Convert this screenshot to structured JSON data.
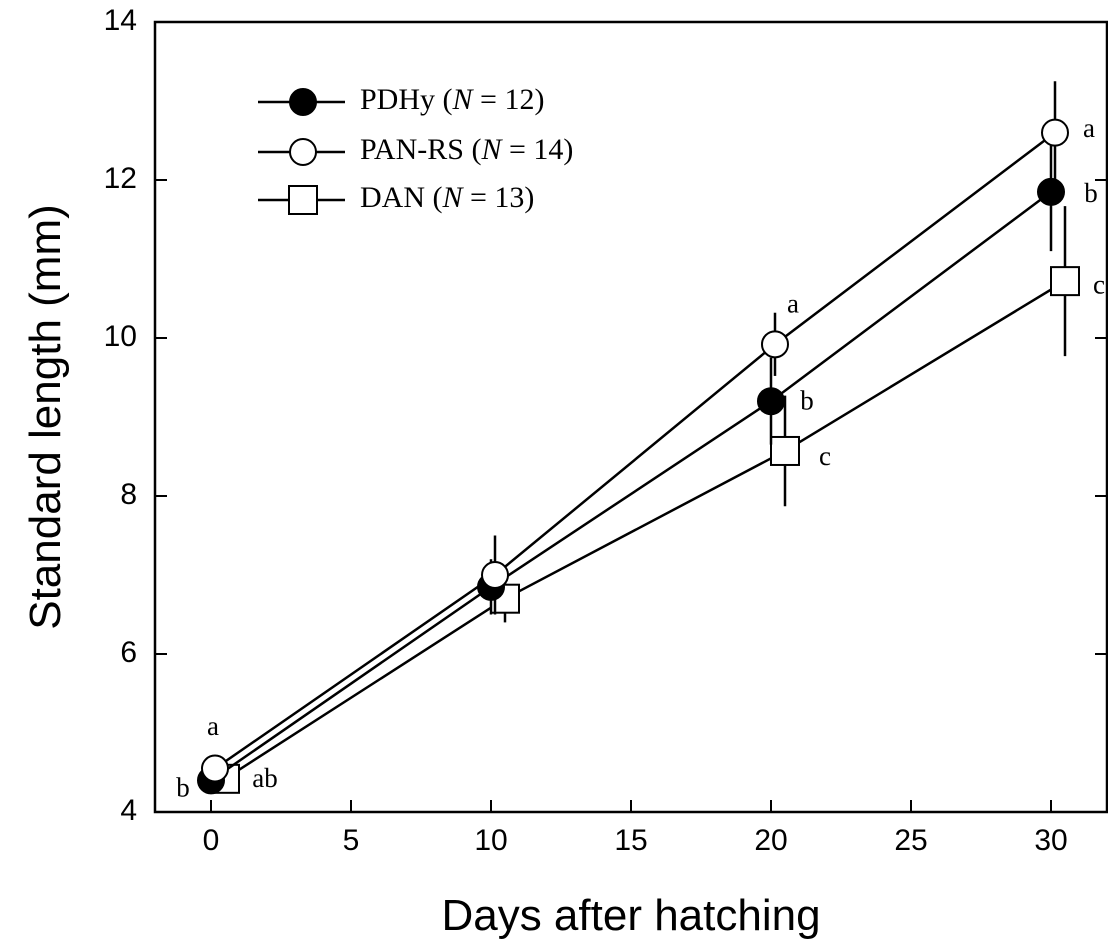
{
  "chart_data": {
    "type": "line",
    "xlabel": "Days after hatching",
    "ylabel": "Standard length (mm)",
    "xlim": [
      -2,
      32
    ],
    "ylim": [
      4,
      14
    ],
    "xticks": [
      0,
      5,
      10,
      15,
      20,
      25,
      30
    ],
    "yticks": [
      4,
      6,
      8,
      10,
      12,
      14
    ],
    "x_tick_labels": [
      "0",
      "5",
      "10",
      "15",
      "20",
      "25",
      "30"
    ],
    "y_tick_labels": [
      "4",
      "6",
      "8",
      "10",
      "12",
      "14"
    ],
    "grid": false,
    "legend_position": "top-left",
    "series": [
      {
        "name": "PDHy (N = 12)",
        "legend_label": "PDHy",
        "legend_n": "N",
        "legend_rest": " = 12)",
        "marker": "filled-circle",
        "x": [
          0,
          10,
          20,
          30
        ],
        "y": [
          4.4,
          6.85,
          9.2,
          11.85
        ],
        "err": [
          0.1,
          0.35,
          0.55,
          0.75
        ],
        "sig": [
          "b",
          "",
          "b",
          "b"
        ]
      },
      {
        "name": "PAN-RS (N = 14)",
        "legend_label": "PAN-RS",
        "legend_n": "N",
        "legend_rest": " = 14)",
        "marker": "open-circle",
        "x": [
          0,
          10,
          20,
          30
        ],
        "y": [
          4.55,
          7.0,
          9.92,
          12.6
        ],
        "err": [
          0.1,
          0.5,
          0.4,
          0.65
        ],
        "sig": [
          "a",
          "",
          "a",
          "a"
        ]
      },
      {
        "name": "DAN (N = 13)",
        "legend_label": "DAN",
        "legend_n": "N",
        "legend_rest": " = 13)",
        "marker": "open-square",
        "x": [
          0,
          10,
          20,
          30
        ],
        "y": [
          4.42,
          6.7,
          8.57,
          10.72
        ],
        "err": [
          0.1,
          0.3,
          0.7,
          0.95
        ],
        "sig": [
          "ab",
          "",
          "c",
          "c"
        ]
      }
    ]
  }
}
